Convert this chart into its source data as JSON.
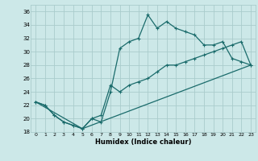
{
  "title": "",
  "xlabel": "Humidex (Indice chaleur)",
  "xlim": [
    -0.5,
    23.5
  ],
  "ylim": [
    18,
    37
  ],
  "xticks": [
    0,
    1,
    2,
    3,
    4,
    5,
    6,
    7,
    8,
    9,
    10,
    11,
    12,
    13,
    14,
    15,
    16,
    17,
    18,
    19,
    20,
    21,
    22,
    23
  ],
  "yticks": [
    18,
    20,
    22,
    24,
    26,
    28,
    30,
    32,
    34,
    36
  ],
  "bg_color": "#cce8e8",
  "grid_color": "#aacccc",
  "line_color": "#1a6b6b",
  "line1_x": [
    0,
    1,
    2,
    3,
    4,
    5,
    6,
    7,
    8,
    9,
    10,
    11,
    12,
    13,
    14,
    15,
    16,
    17,
    18,
    19,
    20,
    21,
    22,
    23
  ],
  "line1_y": [
    22.5,
    22,
    20.5,
    19.5,
    19,
    18.5,
    20,
    19.5,
    24,
    30.5,
    31.5,
    32,
    35.5,
    33.5,
    34.5,
    33.5,
    33,
    32.5,
    31,
    31,
    31.5,
    29,
    28.5,
    28
  ],
  "line2_x": [
    0,
    1,
    2,
    3,
    4,
    5,
    6,
    7,
    8,
    9,
    10,
    11,
    12,
    13,
    14,
    15,
    16,
    17,
    18,
    19,
    20,
    21,
    22,
    23
  ],
  "line2_y": [
    22.5,
    22,
    20.5,
    19.5,
    19,
    18.5,
    20,
    20.5,
    25,
    24,
    25,
    25.5,
    26,
    27,
    28,
    28,
    28.5,
    29,
    29.5,
    30,
    30.5,
    31,
    31.5,
    28
  ],
  "line3_x": [
    0,
    5,
    23
  ],
  "line3_y": [
    22.5,
    18.5,
    28
  ]
}
